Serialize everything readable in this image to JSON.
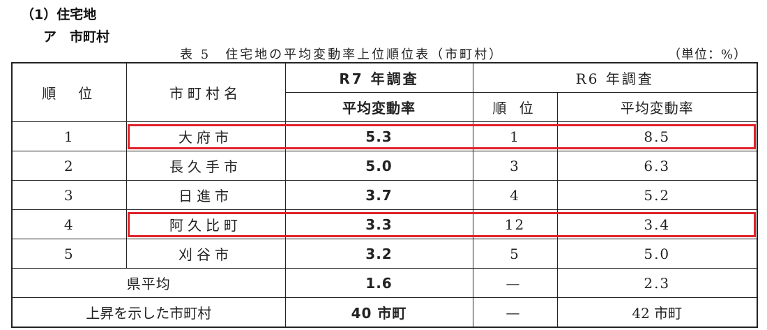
{
  "heading1": "（1）住宅地",
  "heading2": "ア　市町村",
  "caption": "表 5　住宅地の平均変動率上位順位表（市町村）",
  "unit": "（単位：%）",
  "header": {
    "rank": "順　位",
    "name": "市町村名",
    "r7": "R7 年調査",
    "r6": "R6 年調査",
    "r7_rate": "平均変動率",
    "r6_rank": "順 位",
    "r6_rate": "平均変動率"
  },
  "rows": [
    {
      "rank": "1",
      "name": "大府市",
      "r7_rate": "5.3",
      "r6_rank": "1",
      "r6_rate": "8.5",
      "highlighted": true
    },
    {
      "rank": "2",
      "name": "長久手市",
      "r7_rate": "5.0",
      "r6_rank": "3",
      "r6_rate": "6.3",
      "highlighted": false
    },
    {
      "rank": "3",
      "name": "日進市",
      "r7_rate": "3.7",
      "r6_rank": "4",
      "r6_rate": "5.2",
      "highlighted": false
    },
    {
      "rank": "4",
      "name": "阿久比町",
      "r7_rate": "3.3",
      "r6_rank": "12",
      "r6_rate": "3.4",
      "highlighted": true
    },
    {
      "rank": "5",
      "name": "刈谷市",
      "r7_rate": "3.2",
      "r6_rank": "5",
      "r6_rate": "5.0",
      "highlighted": false
    }
  ],
  "avg": {
    "label": "県平均",
    "r7_rate": "1.6",
    "r6_rank": "—",
    "r6_rate": "2.3"
  },
  "rise": {
    "label": "上昇を示した市町村",
    "r7": "40 市町",
    "r6_rank": "—",
    "r6": "42 市町"
  },
  "highlight_color": "#e0222a"
}
